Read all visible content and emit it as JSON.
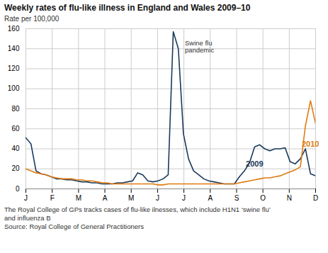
{
  "chart_data": {
    "type": "line",
    "title": "Weekly rates of flu-like illness in England and Wales 2009–10",
    "ylabel": "Rate per 100,000",
    "x": [
      0,
      1,
      2,
      3,
      4,
      5,
      6,
      7,
      8,
      9,
      10,
      11,
      12,
      13,
      14,
      15,
      16,
      17,
      18,
      19,
      20,
      21,
      22,
      23,
      24,
      25,
      26,
      27,
      28,
      29,
      30,
      31,
      32,
      33,
      34,
      35,
      36,
      37,
      38,
      39,
      40,
      41,
      42,
      43,
      44,
      45,
      46,
      47,
      48,
      49,
      50,
      51,
      52,
      53,
      54,
      55,
      56,
      57
    ],
    "series": [
      {
        "name": "2009",
        "color": "#1a3a5c",
        "values": [
          51,
          45,
          18,
          15,
          14,
          12,
          10,
          10,
          9,
          9,
          8,
          7,
          7,
          6,
          6,
          5,
          5,
          5,
          6,
          6,
          7,
          8,
          16,
          14,
          8,
          7,
          8,
          10,
          14,
          157,
          140,
          55,
          30,
          18,
          14,
          10,
          8,
          7,
          6,
          5,
          5,
          5,
          12,
          18,
          26,
          42,
          44,
          40,
          38,
          40,
          40,
          41,
          27,
          25,
          30,
          40,
          15,
          13
        ]
      },
      {
        "name": "2010",
        "color": "#e07b10",
        "values": [
          20,
          18,
          16,
          15,
          14,
          12,
          11,
          10,
          10,
          10,
          9,
          9,
          8,
          8,
          7,
          6,
          6,
          5,
          5,
          5,
          5,
          5,
          5,
          5,
          5,
          5,
          4,
          4,
          5,
          5,
          5,
          5,
          5,
          5,
          5,
          5,
          5,
          5,
          5,
          5,
          5,
          5,
          6,
          7,
          8,
          9,
          10,
          11,
          11,
          12,
          13,
          15,
          17,
          19,
          22,
          63,
          88,
          65
        ]
      }
    ],
    "xlim": [
      0,
      57
    ],
    "xticks": [
      {
        "value": 0,
        "label": "J"
      },
      {
        "value": 5.181818181818182,
        "label": "F"
      },
      {
        "value": 10.363636363636363,
        "label": "M"
      },
      {
        "value": 15.545454545454545,
        "label": "A"
      },
      {
        "value": 20.727272727272727,
        "label": "M"
      },
      {
        "value": 25.90909090909091,
        "label": "J"
      },
      {
        "value": 31.09090909090909,
        "label": "J"
      },
      {
        "value": 36.27272727272727,
        "label": "A"
      },
      {
        "value": 41.45454545454545,
        "label": "S"
      },
      {
        "value": 46.63636363636363,
        "label": "O"
      },
      {
        "value": 51.81818181818182,
        "label": "N"
      },
      {
        "value": 57,
        "label": "D"
      }
    ],
    "ylim": [
      0,
      160
    ],
    "yticks": [
      0,
      20,
      40,
      60,
      80,
      100,
      120,
      140,
      160
    ],
    "grid": true,
    "annotations": [
      {
        "text": "Swine flu\npandemic",
        "x": 31,
        "y": 148
      },
      {
        "text": "2009",
        "x": 43,
        "y": 22,
        "color": "#1a3a5c"
      },
      {
        "text": "2010",
        "x": 54,
        "y": 42,
        "color": "#e07b10"
      }
    ],
    "footnotes": [
      "The Royal College of GPs tracks cases of flu-like ilnesses, which include H1N1 ‘swine flu’",
      "and influenza B",
      "Source: Royal College of General Practitioners"
    ]
  }
}
